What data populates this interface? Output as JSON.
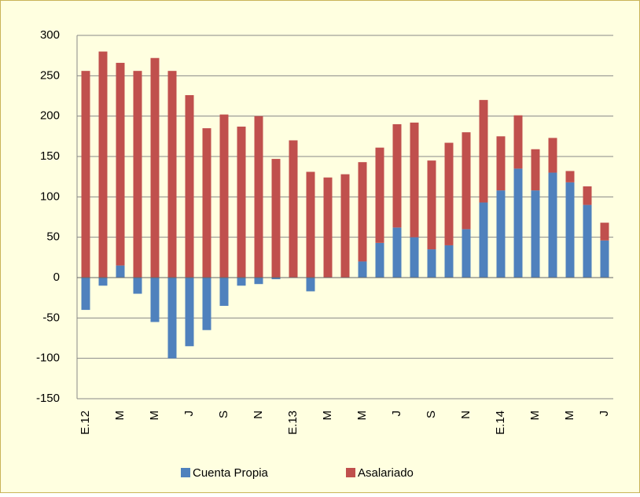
{
  "chart_data": {
    "type": "stacked-bar",
    "categories": [
      "E.12",
      null,
      "M",
      null,
      "M",
      null,
      "J",
      null,
      "S",
      null,
      "N",
      null,
      "E.13",
      null,
      "M",
      null,
      "M",
      null,
      "J",
      null,
      "S",
      null,
      "N",
      null,
      "E.14",
      null,
      "M",
      null,
      "M",
      null,
      "J"
    ],
    "series": [
      {
        "name": "Cuenta Propia",
        "color": "#4f81bd",
        "values": [
          -40,
          -10,
          15,
          -20,
          -55,
          -100,
          -85,
          -65,
          -35,
          -10,
          -8,
          -2,
          0,
          -17,
          0,
          0,
          20,
          43,
          62,
          50,
          35,
          40,
          60,
          93,
          108,
          135,
          108,
          130,
          118,
          90,
          46
        ]
      },
      {
        "name": "Asalariado",
        "color": "#c0504d",
        "values": [
          256,
          280,
          251,
          256,
          272,
          256,
          226,
          185,
          202,
          187,
          200,
          147,
          170,
          131,
          124,
          128,
          123,
          118,
          128,
          142,
          110,
          127,
          120,
          127,
          67,
          66,
          51,
          43,
          14,
          23,
          22
        ]
      }
    ],
    "ylim": [
      -150,
      300
    ],
    "yticks": [
      -150,
      -100,
      -50,
      0,
      50,
      100,
      150,
      200,
      250,
      300
    ],
    "grid": true
  }
}
